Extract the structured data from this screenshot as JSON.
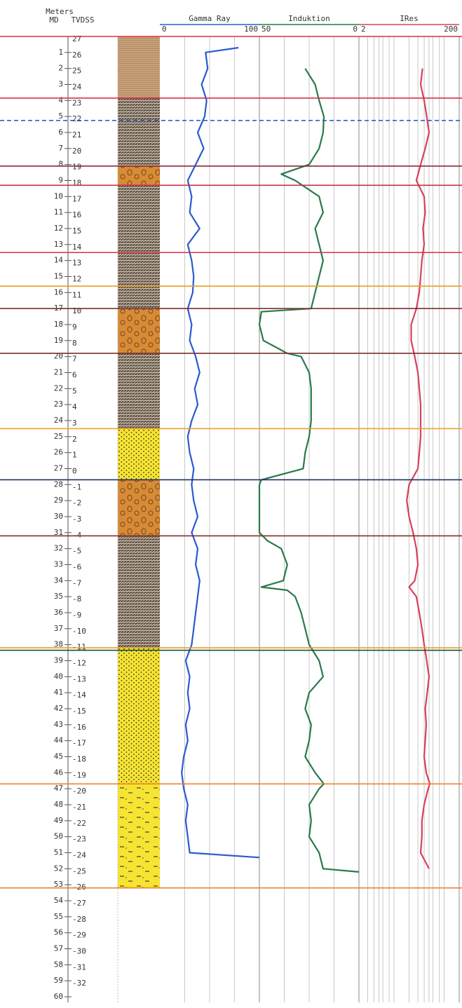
{
  "chart_data": {
    "type": "well-log",
    "ylabel": "Meters",
    "ylabel_md": "MD",
    "ylabel_tvdss": "TVDSS",
    "ylim": [
      0,
      60
    ],
    "yticks": [
      1,
      2,
      3,
      4,
      5,
      6,
      7,
      8,
      9,
      10,
      11,
      12,
      13,
      14,
      15,
      16,
      17,
      18,
      19,
      20,
      21,
      22,
      23,
      24,
      25,
      26,
      27,
      28,
      29,
      30,
      31,
      32,
      33,
      34,
      35,
      36,
      37,
      38,
      39,
      40,
      41,
      42,
      43,
      44,
      45,
      46,
      47,
      48,
      49,
      50,
      51,
      52,
      53,
      54,
      55,
      56,
      57,
      58,
      59,
      60
    ],
    "y2lim": [
      27,
      -33
    ],
    "y2ticks": [
      27,
      26,
      25,
      24,
      23,
      22,
      21,
      20,
      19,
      18,
      17,
      16,
      15,
      14,
      13,
      12,
      11,
      10,
      9,
      8,
      7,
      6,
      5,
      4,
      3,
      2,
      1,
      0,
      -1,
      -2,
      -3,
      -4,
      -5,
      -6,
      -7,
      -8,
      -9,
      -10,
      -11,
      -12,
      -13,
      -14,
      -15,
      -16,
      -17,
      -18,
      -19,
      -20,
      -21,
      -22,
      -23,
      -24,
      -25,
      -26,
      -27,
      -28,
      -29,
      -30,
      -31,
      -32
    ],
    "series": [
      {
        "name": "Gamma Ray",
        "color": "#2a5bd0",
        "xlim": [
          0,
          100
        ],
        "xticks": [
          0,
          100
        ],
        "grid": [
          25,
          50,
          75
        ],
        "depth": [
          0.7,
          1,
          2,
          3,
          4,
          5,
          6,
          7,
          8,
          9,
          10,
          11,
          12,
          13,
          14,
          15,
          16,
          17,
          18,
          19,
          20,
          21,
          22,
          23,
          24,
          25,
          26,
          27,
          28,
          29,
          30,
          31,
          32,
          33,
          34,
          35,
          36,
          37,
          38,
          39,
          40,
          41,
          42,
          43,
          44,
          45,
          46,
          47,
          48,
          49,
          50,
          51,
          51.3
        ],
        "values": [
          79,
          46,
          48,
          42,
          47,
          45,
          38,
          44,
          36,
          28,
          32,
          30,
          40,
          28,
          32,
          34,
          33,
          28,
          32,
          30,
          36,
          40,
          35,
          38,
          32,
          28,
          30,
          34,
          32,
          34,
          38,
          32,
          38,
          36,
          40,
          38,
          36,
          34,
          32,
          26,
          30,
          28,
          30,
          26,
          28,
          24,
          22,
          24,
          28,
          26,
          28,
          30,
          100
        ]
      },
      {
        "name": "Induktion",
        "color": "#2a7a4a",
        "xlim": [
          50,
          0
        ],
        "xticks": [
          50,
          0
        ],
        "grid": [
          37.5,
          25,
          12.5
        ],
        "depth": [
          2,
          3,
          4,
          5,
          6,
          7,
          8,
          8.6,
          9,
          10,
          11,
          12,
          13,
          14,
          15,
          16,
          17,
          17.2,
          18,
          19,
          19.8,
          20,
          21,
          22,
          23,
          24,
          25,
          26,
          27,
          27.7,
          28,
          29,
          30,
          31,
          31.5,
          32,
          33,
          34,
          34.4,
          34.6,
          35,
          36,
          37,
          38,
          39,
          40,
          41,
          42,
          43,
          44,
          45,
          46,
          46.7,
          47,
          48,
          49,
          50,
          51,
          52,
          52.2
        ],
        "values": [
          27,
          22,
          20,
          17.6,
          18,
          20,
          25,
          39,
          32,
          20,
          18,
          22,
          20,
          18,
          20,
          22,
          24,
          49,
          50,
          48,
          36,
          29,
          25,
          24,
          24,
          24,
          25,
          27,
          28,
          49,
          50,
          50,
          50,
          50,
          46,
          39,
          36,
          38,
          49,
          36,
          32,
          29,
          27,
          25,
          20,
          18,
          25,
          27,
          24,
          25,
          27,
          22,
          17.6,
          20,
          25,
          24,
          25,
          20,
          18,
          0
        ]
      },
      {
        "name": "IRes",
        "color": "#d8405a",
        "xlim": [
          2,
          200
        ],
        "xticks": [
          2,
          200
        ],
        "log": true,
        "grid": [
          3,
          4,
          5,
          6,
          8,
          10,
          20,
          30,
          40,
          50,
          60,
          80,
          100
        ],
        "depth": [
          2,
          3,
          4,
          5,
          6,
          7,
          8,
          9,
          10,
          11,
          12,
          13,
          14,
          15,
          16,
          17,
          18,
          19,
          20,
          21,
          22,
          23,
          24,
          25,
          26,
          27,
          28,
          29,
          30,
          31,
          32,
          33,
          34,
          34.4,
          35,
          36,
          37,
          38,
          39,
          40,
          41,
          42,
          43,
          44,
          45,
          46,
          46.7,
          47,
          48,
          49,
          50,
          51,
          52
        ],
        "values": [
          37,
          34,
          40,
          45,
          50,
          42,
          34,
          28,
          40,
          42,
          38,
          40,
          36,
          34,
          32,
          28,
          22,
          22,
          26,
          30,
          32,
          34,
          34,
          34,
          32,
          30,
          20,
          18,
          20,
          24,
          28,
          30,
          26,
          20,
          28,
          32,
          36,
          40,
          45,
          50,
          46,
          42,
          44,
          42,
          40,
          44,
          52,
          48,
          40,
          36,
          36,
          34,
          50
        ]
      }
    ],
    "lithology": [
      {
        "top": 0,
        "base": 3.85,
        "color": "#c9a27c",
        "pattern": "banded"
      },
      {
        "top": 3.85,
        "base": 8.1,
        "color": "#9a8a78",
        "pattern": "hatched"
      },
      {
        "top": 8.1,
        "base": 9.3,
        "color": "#d98a35",
        "pattern": "nodular"
      },
      {
        "top": 9.3,
        "base": 17,
        "color": "#9a8a78",
        "pattern": "hatched"
      },
      {
        "top": 17,
        "base": 19.8,
        "color": "#d98a35",
        "pattern": "nodular"
      },
      {
        "top": 19.8,
        "base": 24.5,
        "color": "#9a8a78",
        "pattern": "hatched"
      },
      {
        "top": 24.5,
        "base": 27.7,
        "color": "#f7e430",
        "pattern": "dotted"
      },
      {
        "top": 27.7,
        "base": 31.2,
        "color": "#d98a35",
        "pattern": "nodular"
      },
      {
        "top": 31.2,
        "base": 38.2,
        "color": "#9a8a78",
        "pattern": "hatched"
      },
      {
        "top": 38.2,
        "base": 46.7,
        "color": "#f7e430",
        "pattern": "dotted"
      },
      {
        "top": 46.7,
        "base": 53.2,
        "color": "#f7e430",
        "pattern": "dashed"
      }
    ],
    "tops": [
      {
        "md": 0,
        "color": "#d9304a"
      },
      {
        "md": 3.85,
        "color": "#d9304a"
      },
      {
        "md": 5.25,
        "color": "#2050c0",
        "dashed": true
      },
      {
        "md": 8.1,
        "color": "#8a2a3a"
      },
      {
        "md": 9.3,
        "color": "#c8304a"
      },
      {
        "md": 13.5,
        "color": "#d9304a"
      },
      {
        "md": 15.6,
        "color": "#e8a020"
      },
      {
        "md": 17,
        "color": "#7a3030"
      },
      {
        "md": 19.8,
        "color": "#7a3030"
      },
      {
        "md": 24.5,
        "color": "#f0a030"
      },
      {
        "md": 27.7,
        "color": "#203060"
      },
      {
        "md": 31.2,
        "color": "#7a3030"
      },
      {
        "md": 38.2,
        "color": "#e8a020"
      },
      {
        "md": 38.35,
        "color": "#1f4f3f"
      },
      {
        "md": 46.7,
        "color": "#f08030"
      },
      {
        "md": 53.2,
        "color": "#f08030"
      }
    ]
  }
}
